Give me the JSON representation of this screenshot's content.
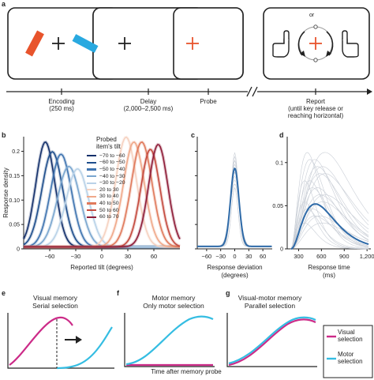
{
  "panel_letters": {
    "a": "a",
    "b": "b",
    "c": "c",
    "d": "d",
    "e": "e",
    "f": "f",
    "g": "g"
  },
  "panel_a": {
    "probe_or": "or",
    "timeline_labels": [
      {
        "title": "Encoding",
        "sub": "(250 ms)"
      },
      {
        "title": "Delay",
        "sub": "(2,000–2,500 ms)"
      },
      {
        "title": "Probe",
        "sub": ""
      },
      {
        "title": "Report",
        "sub": "(until key release or",
        "sub2": "reaching horizontal)"
      }
    ],
    "colors": {
      "orange_bar": "#e8542c",
      "blue_bar": "#29a9e0",
      "probe_cross": "#e8542c"
    },
    "icons": [
      "hand-pointer-left-icon",
      "hand-pointer-right-icon",
      "rotate-arrow-icon"
    ]
  },
  "panel_b": {
    "ylabel": "Response density",
    "xlabel": "Reported tilt (degrees)",
    "xticks": [
      "−60",
      "−30",
      "0",
      "30",
      "60"
    ],
    "yticks": [
      "0",
      "0.05",
      "0.10",
      "0.15",
      "0.2"
    ],
    "legend_title_1": "Probed",
    "legend_title_2": "item's tilt",
    "legend": [
      {
        "label": "−70 to −60",
        "color": "#14306b"
      },
      {
        "label": "−60 to −50",
        "color": "#1f4e8c"
      },
      {
        "label": "−50 to −40",
        "color": "#3f74b0"
      },
      {
        "label": "−40 to −30",
        "color": "#7aa6cf"
      },
      {
        "label": "−30 to −20",
        "color": "#b9d2e8"
      },
      {
        "label": "20 to 30",
        "color": "#f6d2c1"
      },
      {
        "label": "30 to 40",
        "color": "#f0a98a"
      },
      {
        "label": "40 to 50",
        "color": "#e07a5c"
      },
      {
        "label": "50 to 60",
        "color": "#c44a3e"
      },
      {
        "label": "60 to 70",
        "color": "#8e1d38"
      }
    ]
  },
  "chart_data": [
    {
      "type": "line",
      "panel": "b",
      "xlabel": "Reported tilt (degrees)",
      "ylabel": "Response density",
      "xlim": [
        -90,
        90
      ],
      "ylim": [
        0,
        0.23
      ],
      "series": [
        {
          "name": "−70 to −60",
          "peak_x": -65,
          "peak_y": 0.215,
          "width": 11
        },
        {
          "name": "−60 to −50",
          "peak_x": -57,
          "peak_y": 0.195,
          "width": 12
        },
        {
          "name": "−50 to −40",
          "peak_x": -47,
          "peak_y": 0.19,
          "width": 12
        },
        {
          "name": "−40 to −30",
          "peak_x": -38,
          "peak_y": 0.165,
          "width": 13
        },
        {
          "name": "−30 to −20",
          "peak_x": -28,
          "peak_y": 0.16,
          "width": 13
        },
        {
          "name": "20 to 30",
          "peak_x": 28,
          "peak_y": 0.225,
          "width": 12
        },
        {
          "name": "30 to 40",
          "peak_x": 37,
          "peak_y": 0.215,
          "width": 12
        },
        {
          "name": "40 to 50",
          "peak_x": 46,
          "peak_y": 0.215,
          "width": 12
        },
        {
          "name": "50 to 60",
          "peak_x": 56,
          "peak_y": 0.2,
          "width": 11
        },
        {
          "name": "60 to 70",
          "peak_x": 65,
          "peak_y": 0.21,
          "width": 11
        }
      ]
    },
    {
      "type": "line",
      "panel": "c",
      "xlabel": "Response deviation",
      "xlabel2": "(degrees)",
      "xticks": [
        "−60",
        "−30",
        "0",
        "30",
        "60"
      ],
      "xlim": [
        -80,
        80
      ],
      "ylim": [
        0,
        0.23
      ],
      "series": [
        {
          "peak_x": 0,
          "peak_y": 0.16,
          "width": 9,
          "color": "#2e6aa8"
        }
      ]
    },
    {
      "type": "line",
      "panel": "d",
      "xlabel": "Response time",
      "xlabel2": "(ms)",
      "xticks": [
        "300",
        "600",
        "900",
        "1,200"
      ],
      "yticks": [
        "0",
        "0.05",
        "0.1"
      ],
      "xlim": [
        150,
        1250
      ],
      "ylim": [
        0,
        0.13
      ],
      "series": [
        {
          "peak_x": 520,
          "peak_y": 0.052,
          "color": "#2e6aa8"
        }
      ]
    }
  ],
  "panel_e": {
    "title_1": "Visual memory",
    "title_2": "Serial selection"
  },
  "panel_f": {
    "title_1": "Motor memory",
    "title_2": "Only motor selection",
    "xlabel": "Time after memory probe"
  },
  "panel_g": {
    "title_1": "Visual-motor memory",
    "title_2": "Parallel selection"
  },
  "legend_bottom": [
    {
      "label_1": "Visual",
      "label_2": "selection",
      "color": "#cc2b88"
    },
    {
      "label_1": "Motor",
      "label_2": "selection",
      "color": "#35bde2"
    }
  ]
}
